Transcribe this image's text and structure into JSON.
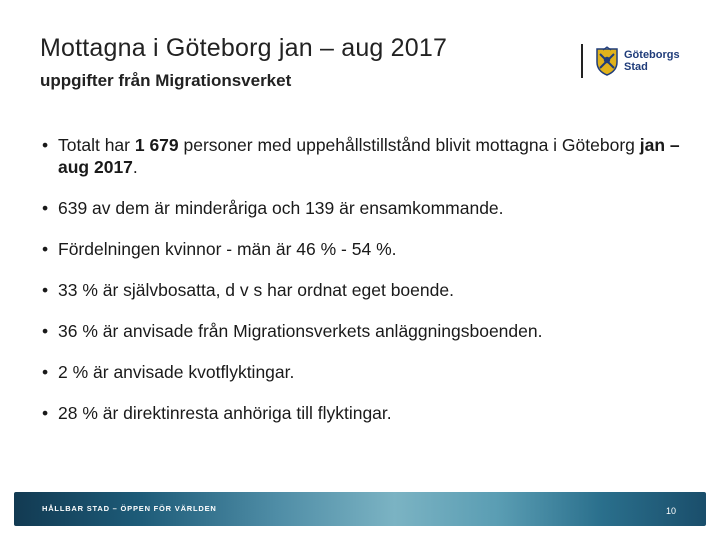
{
  "slide": {
    "title": "Mottagna i Göteborg jan – aug 2017",
    "subtitle": "uppgifter från Migrationsverket",
    "logo": {
      "line1": "Göteborgs",
      "line2": "Stad",
      "icon": "gothenburg-crest-icon"
    },
    "bullets": [
      {
        "pre": "Totalt har ",
        "bold1": "1 679",
        "mid": " personer med uppehållstillstånd blivit mottagna i Göteborg ",
        "bold2": "jan – aug 2017",
        "post": "."
      },
      {
        "text": "639 av dem är minderåriga och 139 är ensamkommande."
      },
      {
        "text": "Fördelningen kvinnor - män är 46 % - 54 %."
      },
      {
        "text": "33 % är självbosatta, d v s har ordnat eget boende."
      },
      {
        "text": "36 % är anvisade från Migrationsverkets anläggningsboenden."
      },
      {
        "text": "2 % är anvisade kvotflyktingar."
      },
      {
        "text": "28 % är direktinresta anhöriga till flyktingar."
      }
    ],
    "footer": {
      "tagline": "HÅLLBAR STAD – ÖPPEN FÖR VÄRLDEN",
      "page_number": "10"
    },
    "colors": {
      "logo_blue": "#1f3c7a",
      "logo_gold": "#e0b21c",
      "footer_dark": "#123a52",
      "footer_light": "#7bb3c3"
    }
  }
}
